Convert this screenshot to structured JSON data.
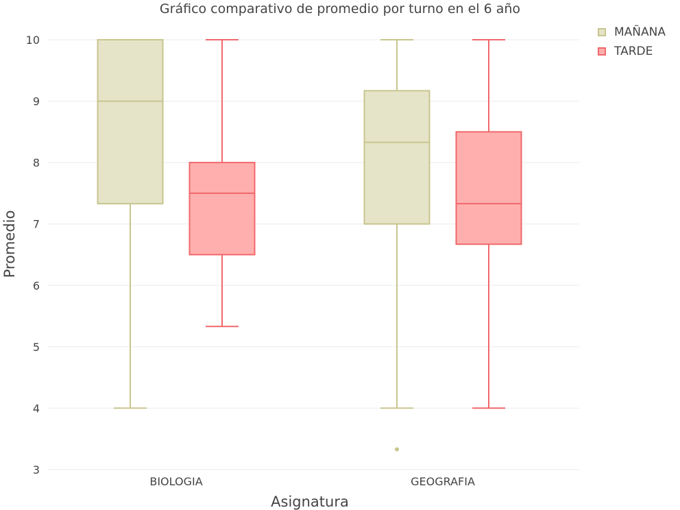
{
  "chart_data": {
    "type": "box",
    "title": "Gráfico comparativo de promedio por turno en el 6 año",
    "xlabel": "Asignatura",
    "ylabel": "Promedio",
    "ylim": [
      2.9,
      10.3
    ],
    "yticks": [
      3,
      4,
      5,
      6,
      7,
      8,
      9,
      10
    ],
    "categories": [
      "BIOLOGIA",
      "GEOGRAFIA"
    ],
    "grid": true,
    "legend_position": "top-right",
    "series": [
      {
        "name": "MAÑANA",
        "stroke": "#c8c58e",
        "fill": "#e5e4c8",
        "boxes": [
          {
            "category": "BIOLOGIA",
            "min": 4.0,
            "q1": 7.33,
            "median": 9.0,
            "q3": 10.0,
            "max": 10.0,
            "outliers": []
          },
          {
            "category": "GEOGRAFIA",
            "min": 4.0,
            "q1": 7.0,
            "median": 8.33,
            "q3": 9.17,
            "max": 10.0,
            "outliers": [
              3.33
            ]
          }
        ]
      },
      {
        "name": "TARDE",
        "stroke": "#f0676b",
        "fill": "#ffb0ae",
        "boxes": [
          {
            "category": "BIOLOGIA",
            "min": 5.33,
            "q1": 6.5,
            "median": 7.5,
            "q3": 8.0,
            "max": 10.0,
            "outliers": []
          },
          {
            "category": "GEOGRAFIA",
            "min": 4.0,
            "q1": 6.67,
            "median": 7.33,
            "q3": 8.5,
            "max": 10.0,
            "outliers": []
          }
        ]
      }
    ]
  }
}
